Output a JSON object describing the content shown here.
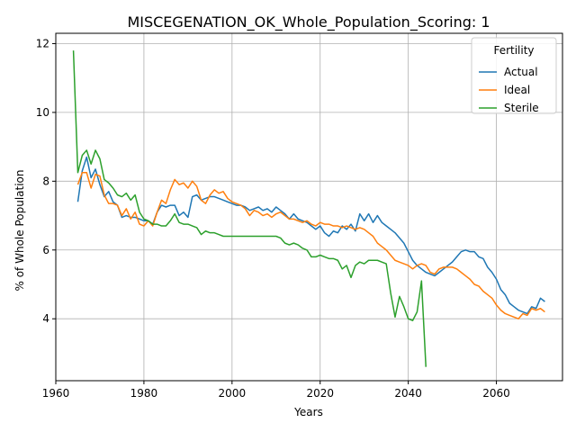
{
  "chart_data": {
    "type": "line",
    "title": "MISCEGENATION_OK_Whole_Population_Scoring: 1",
    "xlabel": "Years",
    "ylabel": "% of Whole Population",
    "xlim": [
      1960,
      2075
    ],
    "ylim": [
      2.2,
      12.3
    ],
    "xticks": [
      1960,
      1980,
      2000,
      2020,
      2040,
      2060
    ],
    "yticks": [
      4,
      6,
      8,
      10,
      12
    ],
    "grid": true,
    "legend": {
      "title": "Fertility",
      "placement": "top-right"
    },
    "series": [
      {
        "name": "Actual",
        "color": "#1f77b4",
        "points": [
          [
            1965,
            7.4
          ],
          [
            1966,
            8.3
          ],
          [
            1967,
            8.7
          ],
          [
            1968,
            8.1
          ],
          [
            1969,
            8.35
          ],
          [
            1970,
            7.9
          ],
          [
            1971,
            7.55
          ],
          [
            1972,
            7.7
          ],
          [
            1973,
            7.4
          ],
          [
            1974,
            7.3
          ],
          [
            1975,
            6.95
          ],
          [
            1976,
            7.0
          ],
          [
            1977,
            6.95
          ],
          [
            1978,
            6.95
          ],
          [
            1979,
            6.9
          ],
          [
            1980,
            6.85
          ],
          [
            1981,
            6.85
          ],
          [
            1982,
            6.75
          ],
          [
            1983,
            7.1
          ],
          [
            1984,
            7.3
          ],
          [
            1985,
            7.25
          ],
          [
            1986,
            7.3
          ],
          [
            1987,
            7.3
          ],
          [
            1988,
            7.0
          ],
          [
            1989,
            7.1
          ],
          [
            1990,
            6.95
          ],
          [
            1991,
            7.55
          ],
          [
            1992,
            7.6
          ],
          [
            1993,
            7.45
          ],
          [
            1994,
            7.5
          ],
          [
            1995,
            7.55
          ],
          [
            1996,
            7.55
          ],
          [
            1997,
            7.5
          ],
          [
            1998,
            7.45
          ],
          [
            1999,
            7.4
          ],
          [
            2000,
            7.35
          ],
          [
            2001,
            7.3
          ],
          [
            2002,
            7.3
          ],
          [
            2003,
            7.25
          ],
          [
            2004,
            7.15
          ],
          [
            2005,
            7.2
          ],
          [
            2006,
            7.25
          ],
          [
            2007,
            7.15
          ],
          [
            2008,
            7.2
          ],
          [
            2009,
            7.1
          ],
          [
            2010,
            7.25
          ],
          [
            2011,
            7.15
          ],
          [
            2012,
            7.05
          ],
          [
            2013,
            6.9
          ],
          [
            2014,
            7.05
          ],
          [
            2015,
            6.9
          ],
          [
            2016,
            6.85
          ],
          [
            2017,
            6.8
          ],
          [
            2018,
            6.7
          ],
          [
            2019,
            6.6
          ],
          [
            2020,
            6.7
          ],
          [
            2021,
            6.5
          ],
          [
            2022,
            6.4
          ],
          [
            2023,
            6.55
          ],
          [
            2024,
            6.5
          ],
          [
            2025,
            6.7
          ],
          [
            2026,
            6.6
          ],
          [
            2027,
            6.75
          ],
          [
            2028,
            6.55
          ],
          [
            2029,
            7.05
          ],
          [
            2030,
            6.85
          ],
          [
            2031,
            7.05
          ],
          [
            2032,
            6.8
          ],
          [
            2033,
            7.0
          ],
          [
            2034,
            6.8
          ],
          [
            2035,
            6.7
          ],
          [
            2036,
            6.6
          ],
          [
            2037,
            6.5
          ],
          [
            2038,
            6.35
          ],
          [
            2039,
            6.2
          ],
          [
            2040,
            5.95
          ],
          [
            2041,
            5.7
          ],
          [
            2042,
            5.55
          ],
          [
            2043,
            5.45
          ],
          [
            2044,
            5.35
          ],
          [
            2045,
            5.3
          ],
          [
            2046,
            5.25
          ],
          [
            2047,
            5.35
          ],
          [
            2048,
            5.45
          ],
          [
            2049,
            5.55
          ],
          [
            2050,
            5.65
          ],
          [
            2051,
            5.8
          ],
          [
            2052,
            5.95
          ],
          [
            2053,
            6.0
          ],
          [
            2054,
            5.95
          ],
          [
            2055,
            5.95
          ],
          [
            2056,
            5.8
          ],
          [
            2057,
            5.75
          ],
          [
            2058,
            5.5
          ],
          [
            2059,
            5.35
          ],
          [
            2060,
            5.15
          ],
          [
            2061,
            4.85
          ],
          [
            2062,
            4.7
          ],
          [
            2063,
            4.45
          ],
          [
            2064,
            4.35
          ],
          [
            2065,
            4.25
          ],
          [
            2066,
            4.2
          ],
          [
            2067,
            4.15
          ],
          [
            2068,
            4.35
          ],
          [
            2069,
            4.3
          ],
          [
            2070,
            4.6
          ],
          [
            2071,
            4.5
          ]
        ]
      },
      {
        "name": "Ideal",
        "color": "#ff7f0e",
        "points": [
          [
            1965,
            7.9
          ],
          [
            1966,
            8.25
          ],
          [
            1967,
            8.25
          ],
          [
            1968,
            7.8
          ],
          [
            1969,
            8.2
          ],
          [
            1970,
            8.15
          ],
          [
            1971,
            7.6
          ],
          [
            1972,
            7.35
          ],
          [
            1973,
            7.35
          ],
          [
            1974,
            7.3
          ],
          [
            1975,
            7.0
          ],
          [
            1976,
            7.2
          ],
          [
            1977,
            6.9
          ],
          [
            1978,
            7.1
          ],
          [
            1979,
            6.75
          ],
          [
            1980,
            6.7
          ],
          [
            1981,
            6.85
          ],
          [
            1982,
            6.7
          ],
          [
            1983,
            7.1
          ],
          [
            1984,
            7.45
          ],
          [
            1985,
            7.35
          ],
          [
            1986,
            7.75
          ],
          [
            1987,
            8.05
          ],
          [
            1988,
            7.9
          ],
          [
            1989,
            7.95
          ],
          [
            1990,
            7.8
          ],
          [
            1991,
            8.0
          ],
          [
            1992,
            7.85
          ],
          [
            1993,
            7.45
          ],
          [
            1994,
            7.35
          ],
          [
            1995,
            7.6
          ],
          [
            1996,
            7.75
          ],
          [
            1997,
            7.65
          ],
          [
            1998,
            7.7
          ],
          [
            1999,
            7.5
          ],
          [
            2000,
            7.4
          ],
          [
            2001,
            7.35
          ],
          [
            2002,
            7.3
          ],
          [
            2003,
            7.2
          ],
          [
            2004,
            7.0
          ],
          [
            2005,
            7.15
          ],
          [
            2006,
            7.1
          ],
          [
            2007,
            7.0
          ],
          [
            2008,
            7.05
          ],
          [
            2009,
            6.95
          ],
          [
            2010,
            7.05
          ],
          [
            2011,
            7.1
          ],
          [
            2012,
            7.0
          ],
          [
            2013,
            6.9
          ],
          [
            2014,
            6.9
          ],
          [
            2015,
            6.85
          ],
          [
            2016,
            6.8
          ],
          [
            2017,
            6.85
          ],
          [
            2018,
            6.75
          ],
          [
            2019,
            6.7
          ],
          [
            2020,
            6.8
          ],
          [
            2021,
            6.75
          ],
          [
            2022,
            6.75
          ],
          [
            2023,
            6.7
          ],
          [
            2024,
            6.7
          ],
          [
            2025,
            6.65
          ],
          [
            2026,
            6.7
          ],
          [
            2027,
            6.65
          ],
          [
            2028,
            6.6
          ],
          [
            2029,
            6.65
          ],
          [
            2030,
            6.6
          ],
          [
            2031,
            6.5
          ],
          [
            2032,
            6.4
          ],
          [
            2033,
            6.2
          ],
          [
            2034,
            6.1
          ],
          [
            2035,
            6.0
          ],
          [
            2036,
            5.85
          ],
          [
            2037,
            5.7
          ],
          [
            2038,
            5.65
          ],
          [
            2039,
            5.6
          ],
          [
            2040,
            5.55
          ],
          [
            2041,
            5.45
          ],
          [
            2042,
            5.55
          ],
          [
            2043,
            5.6
          ],
          [
            2044,
            5.55
          ],
          [
            2045,
            5.35
          ],
          [
            2046,
            5.3
          ],
          [
            2047,
            5.45
          ],
          [
            2048,
            5.5
          ],
          [
            2049,
            5.5
          ],
          [
            2050,
            5.5
          ],
          [
            2051,
            5.45
          ],
          [
            2052,
            5.35
          ],
          [
            2053,
            5.25
          ],
          [
            2054,
            5.15
          ],
          [
            2055,
            5.0
          ],
          [
            2056,
            4.95
          ],
          [
            2057,
            4.8
          ],
          [
            2058,
            4.7
          ],
          [
            2059,
            4.6
          ],
          [
            2060,
            4.4
          ],
          [
            2061,
            4.25
          ],
          [
            2062,
            4.15
          ],
          [
            2063,
            4.1
          ],
          [
            2064,
            4.05
          ],
          [
            2065,
            4.0
          ],
          [
            2066,
            4.15
          ],
          [
            2067,
            4.1
          ],
          [
            2068,
            4.3
          ],
          [
            2069,
            4.25
          ],
          [
            2070,
            4.3
          ],
          [
            2071,
            4.2
          ]
        ]
      },
      {
        "name": "Sterile",
        "color": "#2ca02c",
        "points": [
          [
            1964,
            11.8
          ],
          [
            1965,
            8.25
          ],
          [
            1966,
            8.75
          ],
          [
            1967,
            8.9
          ],
          [
            1968,
            8.5
          ],
          [
            1969,
            8.9
          ],
          [
            1970,
            8.65
          ],
          [
            1971,
            8.05
          ],
          [
            1972,
            7.95
          ],
          [
            1973,
            7.8
          ],
          [
            1974,
            7.6
          ],
          [
            1975,
            7.55
          ],
          [
            1976,
            7.65
          ],
          [
            1977,
            7.45
          ],
          [
            1978,
            7.6
          ],
          [
            1979,
            7.1
          ],
          [
            1980,
            6.9
          ],
          [
            1981,
            6.85
          ],
          [
            1982,
            6.75
          ],
          [
            1983,
            6.75
          ],
          [
            1984,
            6.7
          ],
          [
            1985,
            6.7
          ],
          [
            1986,
            6.85
          ],
          [
            1987,
            7.05
          ],
          [
            1988,
            6.8
          ],
          [
            1989,
            6.75
          ],
          [
            1990,
            6.75
          ],
          [
            1991,
            6.7
          ],
          [
            1992,
            6.65
          ],
          [
            1993,
            6.45
          ],
          [
            1994,
            6.55
          ],
          [
            1995,
            6.5
          ],
          [
            1996,
            6.5
          ],
          [
            1997,
            6.45
          ],
          [
            1998,
            6.4
          ],
          [
            1999,
            6.4
          ],
          [
            2000,
            6.4
          ],
          [
            2005,
            6.4
          ],
          [
            2010,
            6.4
          ],
          [
            2011,
            6.35
          ],
          [
            2012,
            6.2
          ],
          [
            2013,
            6.15
          ],
          [
            2014,
            6.2
          ],
          [
            2015,
            6.15
          ],
          [
            2016,
            6.05
          ],
          [
            2017,
            6.0
          ],
          [
            2018,
            5.8
          ],
          [
            2019,
            5.8
          ],
          [
            2020,
            5.85
          ],
          [
            2021,
            5.8
          ],
          [
            2022,
            5.75
          ],
          [
            2023,
            5.75
          ],
          [
            2024,
            5.7
          ],
          [
            2025,
            5.45
          ],
          [
            2026,
            5.55
          ],
          [
            2027,
            5.2
          ],
          [
            2028,
            5.55
          ],
          [
            2029,
            5.65
          ],
          [
            2030,
            5.6
          ],
          [
            2031,
            5.7
          ],
          [
            2032,
            5.7
          ],
          [
            2033,
            5.7
          ],
          [
            2034,
            5.65
          ],
          [
            2035,
            5.6
          ],
          [
            2036,
            4.75
          ],
          [
            2037,
            4.05
          ],
          [
            2038,
            4.65
          ],
          [
            2039,
            4.35
          ],
          [
            2040,
            4.0
          ],
          [
            2041,
            3.95
          ],
          [
            2042,
            4.2
          ],
          [
            2043,
            5.1
          ],
          [
            2044,
            2.6
          ]
        ]
      }
    ]
  }
}
